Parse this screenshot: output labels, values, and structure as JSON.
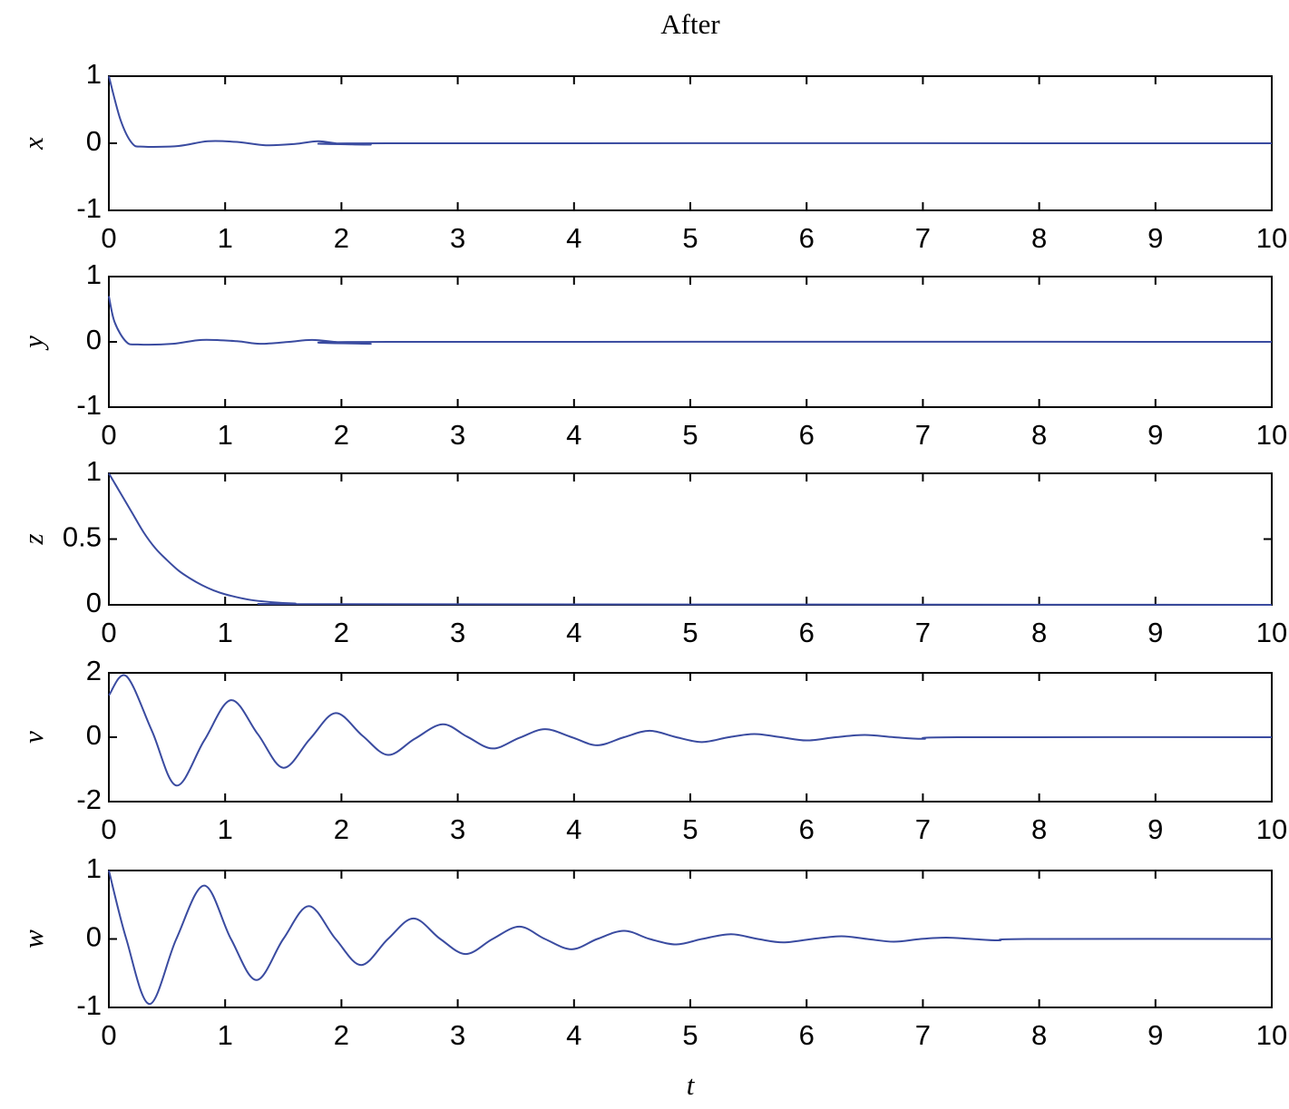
{
  "chart_data": [
    {
      "type": "line",
      "title": "After",
      "ylabel": "x",
      "color": "#3a4ba0",
      "x": [
        0,
        0.1,
        0.2,
        0.3,
        0.6,
        0.85,
        1.1,
        1.35,
        1.6,
        1.8,
        2.0,
        2.25,
        2.4,
        10
      ],
      "values": [
        1,
        0.35,
        0.0,
        -0.05,
        -0.04,
        0.03,
        0.02,
        -0.03,
        -0.01,
        0.03,
        -0.01,
        -0.02,
        0,
        0
      ],
      "xlim": [
        0,
        10
      ],
      "xticks": [
        0,
        1,
        2,
        3,
        4,
        5,
        6,
        7,
        8,
        9,
        10
      ],
      "ylim": [
        -1,
        1
      ],
      "yticks": [
        -1,
        0,
        1
      ]
    },
    {
      "type": "line",
      "ylabel": "y",
      "color": "#3a4ba0",
      "x": [
        0,
        0.05,
        0.15,
        0.25,
        0.55,
        0.8,
        1.1,
        1.3,
        1.55,
        1.75,
        2.0,
        2.25,
        2.4,
        10
      ],
      "values": [
        0.7,
        0.3,
        0.0,
        -0.04,
        -0.03,
        0.03,
        0.01,
        -0.03,
        0,
        0.03,
        -0.01,
        -0.03,
        0,
        0
      ],
      "xlim": [
        0,
        10
      ],
      "xticks": [
        0,
        1,
        2,
        3,
        4,
        5,
        6,
        7,
        8,
        9,
        10
      ],
      "ylim": [
        -1,
        1
      ],
      "yticks": [
        -1,
        0,
        1
      ]
    },
    {
      "type": "line",
      "ylabel": "z",
      "color": "#3a4ba0",
      "x": [
        0,
        0.1,
        0.2,
        0.3,
        0.4,
        0.5,
        0.6,
        0.7,
        0.8,
        0.9,
        1.0,
        1.2,
        1.4,
        1.6,
        2,
        10
      ],
      "values": [
        1,
        0.85,
        0.7,
        0.55,
        0.43,
        0.34,
        0.26,
        0.2,
        0.15,
        0.11,
        0.08,
        0.04,
        0.02,
        0.01,
        0.005,
        0
      ],
      "xlim": [
        0,
        10
      ],
      "xticks": [
        0,
        1,
        2,
        3,
        4,
        5,
        6,
        7,
        8,
        9,
        10
      ],
      "ylim": [
        0,
        1
      ],
      "yticks": [
        0,
        0.5,
        1
      ]
    },
    {
      "type": "line",
      "ylabel": "v",
      "color": "#3a4ba0",
      "x": [
        0,
        0.15,
        0.37,
        0.58,
        0.82,
        1.05,
        1.28,
        1.5,
        1.73,
        1.95,
        2.18,
        2.4,
        2.63,
        2.87,
        3.08,
        3.3,
        3.53,
        3.75,
        3.98,
        4.2,
        4.43,
        4.65,
        4.88,
        5.1,
        5.33,
        5.55,
        5.78,
        6.0,
        6.25,
        6.5,
        6.75,
        7.0,
        7.3,
        10
      ],
      "values": [
        1.3,
        1.9,
        0.2,
        -1.5,
        -0.1,
        1.15,
        0.1,
        -0.95,
        -0.05,
        0.75,
        0.05,
        -0.55,
        -0.05,
        0.4,
        0.02,
        -0.35,
        -0.02,
        0.25,
        0.0,
        -0.25,
        0.0,
        0.2,
        0.0,
        -0.15,
        0.0,
        0.1,
        0.0,
        -0.1,
        0.0,
        0.07,
        0.0,
        -0.05,
        0,
        0
      ],
      "xlim": [
        0,
        10
      ],
      "xticks": [
        0,
        1,
        2,
        3,
        4,
        5,
        6,
        7,
        8,
        9,
        10
      ],
      "ylim": [
        -2,
        2
      ],
      "yticks": [
        -2,
        0,
        2
      ]
    },
    {
      "type": "line",
      "ylabel": "w",
      "xlabel": "t",
      "color": "#3a4ba0",
      "x": [
        0,
        0.15,
        0.35,
        0.58,
        0.82,
        1.05,
        1.27,
        1.5,
        1.72,
        1.95,
        2.17,
        2.4,
        2.62,
        2.85,
        3.07,
        3.3,
        3.53,
        3.75,
        3.98,
        4.2,
        4.43,
        4.65,
        4.88,
        5.1,
        5.35,
        5.58,
        5.8,
        6.05,
        6.3,
        6.52,
        6.75,
        6.98,
        7.2,
        7.42,
        7.65,
        7.9,
        10
      ],
      "values": [
        1,
        0.0,
        -0.95,
        0.0,
        0.78,
        0.0,
        -0.6,
        0.0,
        0.48,
        0.0,
        -0.38,
        0.0,
        0.3,
        0.0,
        -0.22,
        0.0,
        0.18,
        0.0,
        -0.15,
        0.0,
        0.12,
        0.0,
        -0.08,
        0.0,
        0.07,
        0.0,
        -0.05,
        0.0,
        0.04,
        0.0,
        -0.04,
        0.0,
        0.02,
        0.0,
        -0.02,
        0,
        0
      ],
      "xlim": [
        0,
        10
      ],
      "xticks": [
        0,
        1,
        2,
        3,
        4,
        5,
        6,
        7,
        8,
        9,
        10
      ],
      "ylim": [
        -1,
        1
      ],
      "yticks": [
        -1,
        0,
        1
      ]
    }
  ]
}
